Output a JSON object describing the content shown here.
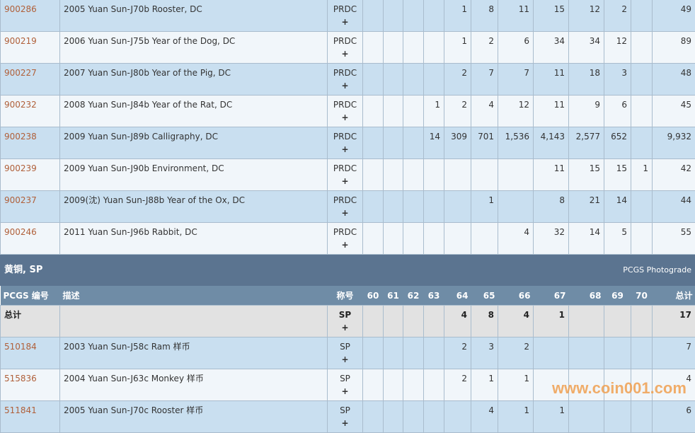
{
  "rows_prdc": [
    {
      "id": "900286",
      "desc": "2005 Yuan Sun-J70b Rooster, DC",
      "des": "PRDC",
      "plus": "+",
      "g": [
        "",
        "",
        "",
        "",
        "1",
        "8",
        "11",
        "15",
        "12",
        "2",
        ""
      ],
      "total": "49"
    },
    {
      "id": "900219",
      "desc": "2006 Yuan Sun-J75b Year of the Dog, DC",
      "des": "PRDC",
      "plus": "+",
      "g": [
        "",
        "",
        "",
        "",
        "1",
        "2",
        "6",
        "34",
        "34",
        "12",
        ""
      ],
      "total": "89"
    },
    {
      "id": "900227",
      "desc": "2007 Yuan Sun-J80b Year of the Pig, DC",
      "des": "PRDC",
      "plus": "+",
      "g": [
        "",
        "",
        "",
        "",
        "2",
        "7",
        "7",
        "11",
        "18",
        "3",
        ""
      ],
      "total": "48"
    },
    {
      "id": "900232",
      "desc": "2008 Yuan Sun-J84b Year of the Rat, DC",
      "des": "PRDC",
      "plus": "+",
      "g": [
        "",
        "",
        "",
        "1",
        "2",
        "4",
        "12",
        "11",
        "9",
        "6",
        ""
      ],
      "total": "45"
    },
    {
      "id": "900238",
      "desc": "2009 Yuan Sun-J89b Calligraphy, DC",
      "des": "PRDC",
      "plus": "+",
      "g": [
        "",
        "",
        "",
        "14",
        "309",
        "701",
        "1,536",
        "4,143",
        "2,577",
        "652",
        ""
      ],
      "total": "9,932"
    },
    {
      "id": "900239",
      "desc": "2009 Yuan Sun-J90b Environment, DC",
      "des": "PRDC",
      "plus": "+",
      "g": [
        "",
        "",
        "",
        "",
        "",
        "",
        "",
        "11",
        "15",
        "15",
        "1"
      ],
      "total": "42"
    },
    {
      "id": "900237",
      "desc": "2009(沈) Yuan Sun-J88b Year of the Ox, DC",
      "des": "PRDC",
      "plus": "+",
      "g": [
        "",
        "",
        "",
        "",
        "",
        "1",
        "",
        "8",
        "21",
        "14",
        ""
      ],
      "total": "44"
    },
    {
      "id": "900246",
      "desc": "2011 Yuan Sun-J96b Rabbit, DC",
      "des": "PRDC",
      "plus": "+",
      "g": [
        "",
        "",
        "",
        "",
        "",
        "",
        "4",
        "32",
        "14",
        "5",
        ""
      ],
      "total": "55"
    }
  ],
  "section": {
    "title": "黄铜, SP",
    "photograde": "PCGS Photograde"
  },
  "headers": {
    "id": "PCGS 编号",
    "desc": "描述",
    "des": "称号",
    "grades": [
      "60",
      "61",
      "62",
      "63",
      "64",
      "65",
      "66",
      "67",
      "68",
      "69",
      "70"
    ],
    "total": "总计"
  },
  "total_row": {
    "label": "总计",
    "des": "SP",
    "plus": "+",
    "g": [
      "",
      "",
      "",
      "",
      "4",
      "8",
      "4",
      "1",
      "",
      "",
      ""
    ],
    "total": "17"
  },
  "rows_sp": [
    {
      "id": "510184",
      "desc": "2003 Yuan Sun-J58c Ram 样币",
      "des": "SP",
      "plus": "+",
      "g": [
        "",
        "",
        "",
        "",
        "2",
        "3",
        "2",
        "",
        "",
        "",
        ""
      ],
      "total": "7"
    },
    {
      "id": "515836",
      "desc": "2004 Yuan Sun-J63c Monkey 样币",
      "des": "SP",
      "plus": "+",
      "g": [
        "",
        "",
        "",
        "",
        "2",
        "1",
        "1",
        "",
        "",
        "",
        ""
      ],
      "total": "4"
    },
    {
      "id": "511841",
      "desc": "2005 Yuan Sun-J70c Rooster 样币",
      "des": "SP",
      "plus": "+",
      "g": [
        "",
        "",
        "",
        "",
        "",
        "4",
        "1",
        "1",
        "",
        "",
        ""
      ],
      "total": "6"
    }
  ],
  "watermark": "www.coin001.com"
}
